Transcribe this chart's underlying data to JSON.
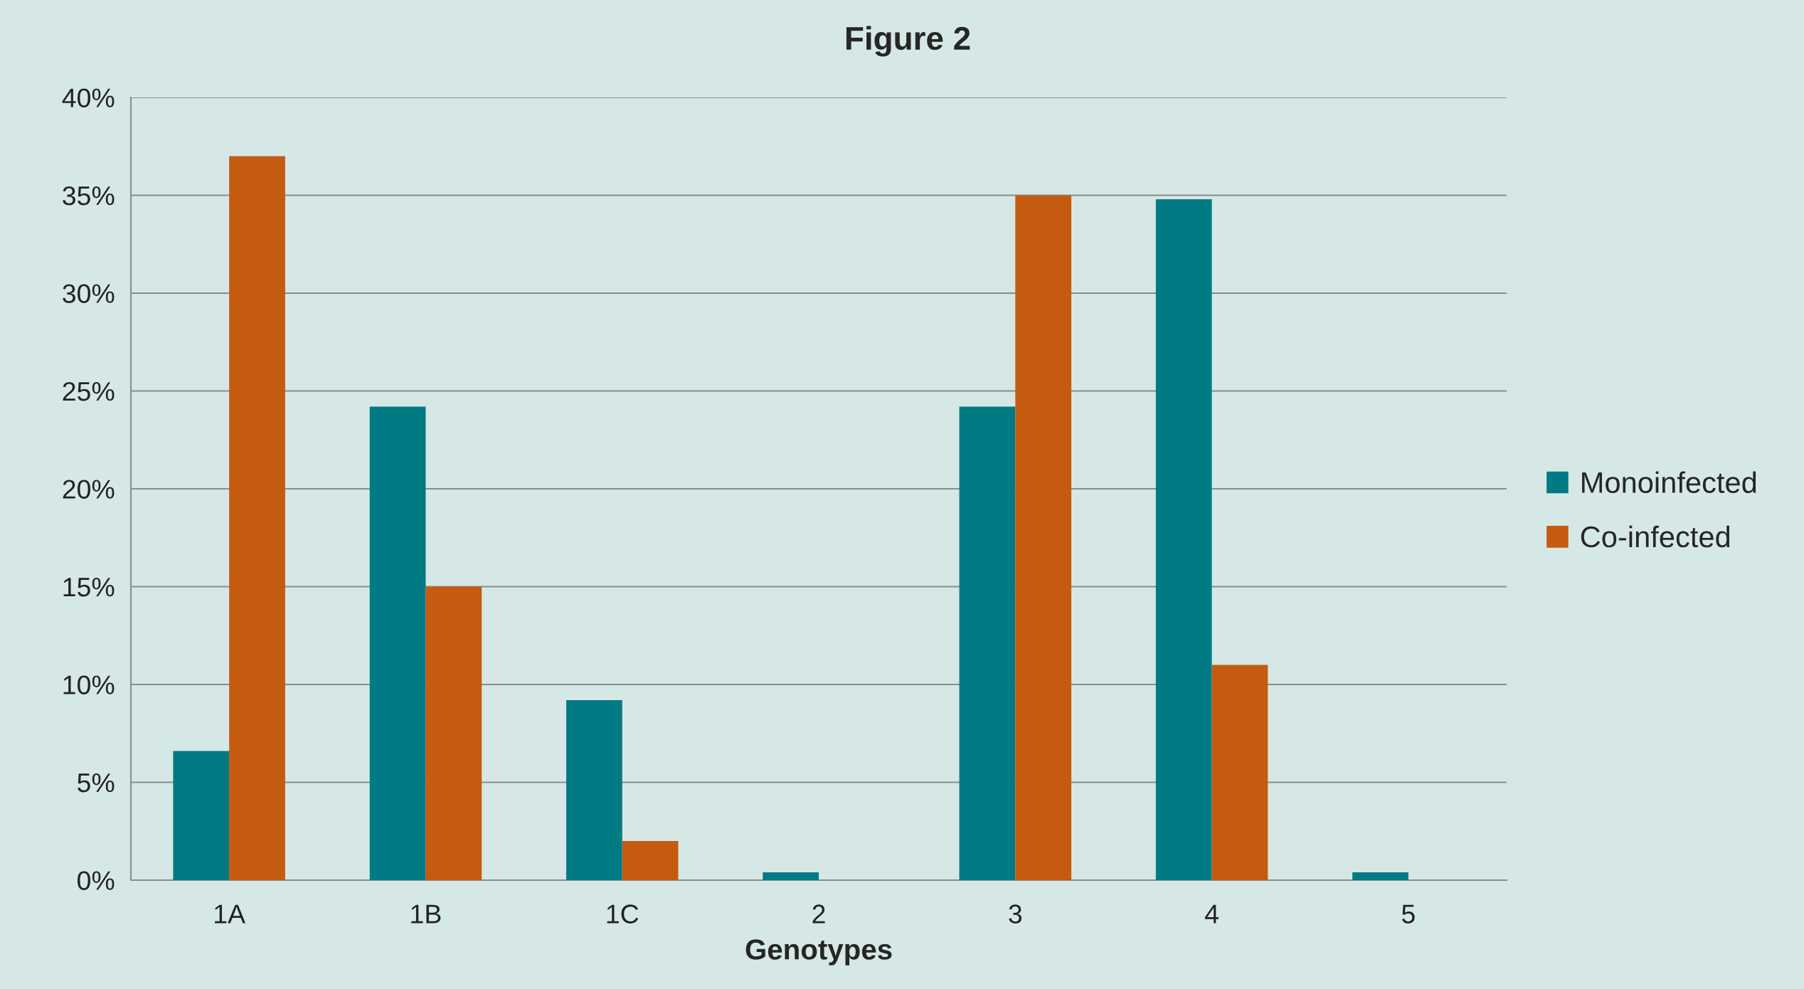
{
  "chart_data": {
    "type": "bar",
    "title": "Figure 2",
    "xlabel": "Genotypes",
    "categories": [
      "1A",
      "1B",
      "1C",
      "2",
      "3",
      "4",
      "5"
    ],
    "series": [
      {
        "name": "Monoinfected",
        "color": "#007b84",
        "values": [
          6.6,
          24.2,
          9.2,
          0.4,
          24.2,
          34.8,
          0.4
        ]
      },
      {
        "name": "Co-infected",
        "color": "#c55a11",
        "values": [
          37,
          15,
          2,
          0,
          35,
          11,
          0
        ]
      }
    ],
    "ylim": [
      0,
      40
    ],
    "yticks": [
      {
        "value": 0,
        "label": "0%"
      },
      {
        "value": 5,
        "label": "5%"
      },
      {
        "value": 10,
        "label": "10%"
      },
      {
        "value": 15,
        "label": "15%"
      },
      {
        "value": 20,
        "label": "20%"
      },
      {
        "value": 25,
        "label": "25%"
      },
      {
        "value": 30,
        "label": "30%"
      },
      {
        "value": 35,
        "label": "35%"
      },
      {
        "value": 40,
        "label": "40%"
      }
    ],
    "grid": "y",
    "legend": "right"
  }
}
